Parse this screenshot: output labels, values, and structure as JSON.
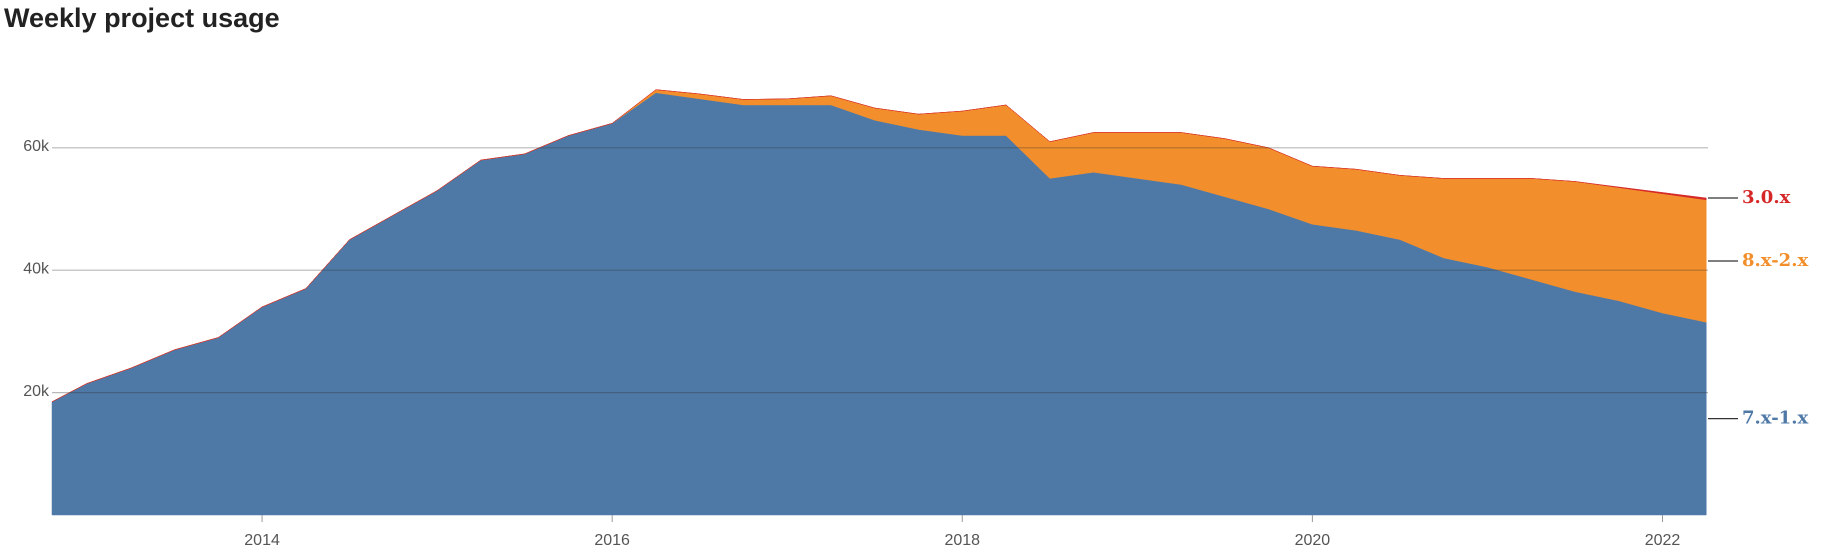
{
  "chart_data": {
    "type": "stacked_area",
    "title": "Weekly project usage",
    "x": [
      2012.8,
      2013.0,
      2013.25,
      2013.5,
      2013.75,
      2014.0,
      2014.25,
      2014.5,
      2014.75,
      2015.0,
      2015.25,
      2015.5,
      2015.75,
      2016.0,
      2016.25,
      2016.5,
      2016.75,
      2017.0,
      2017.25,
      2017.5,
      2017.75,
      2018.0,
      2018.25,
      2018.5,
      2018.75,
      2019.0,
      2019.25,
      2019.5,
      2019.75,
      2020.0,
      2020.25,
      2020.5,
      2020.75,
      2021.0,
      2021.25,
      2021.5,
      2021.75,
      2022.0,
      2022.25
    ],
    "series": [
      {
        "name": "7.x-1.x",
        "color": "#4e79a7",
        "values": [
          18500,
          21500,
          24000,
          27000,
          29000,
          34000,
          37000,
          45000,
          49000,
          53000,
          58000,
          59000,
          62000,
          64000,
          69000,
          68000,
          67000,
          67000,
          67000,
          64500,
          63000,
          62000,
          62000,
          55000,
          56000,
          55000,
          54000,
          52000,
          50000,
          47500,
          46500,
          45000,
          42000,
          40500,
          38500,
          36500,
          35000,
          33000,
          31500
        ]
      },
      {
        "name": "8.x-2.x",
        "color": "#f28e2b",
        "values": [
          0,
          0,
          0,
          0,
          0,
          0,
          0,
          0,
          0,
          0,
          0,
          0,
          0,
          0,
          500,
          800,
          900,
          1000,
          1500,
          2000,
          2500,
          4000,
          5000,
          6000,
          6500,
          7500,
          8500,
          9500,
          10000,
          9500,
          10000,
          10500,
          13000,
          14500,
          16500,
          18000,
          18500,
          19500,
          20000
        ]
      },
      {
        "name": "3.0.x",
        "color": "#d62728",
        "values": [
          0,
          0,
          0,
          0,
          0,
          0,
          0,
          0,
          0,
          0,
          0,
          0,
          0,
          0,
          0,
          0,
          0,
          0,
          0,
          0,
          0,
          0,
          0,
          0,
          0,
          0,
          0,
          0,
          0,
          0,
          0,
          0,
          0,
          0,
          0,
          0,
          100,
          200,
          300
        ]
      }
    ],
    "xlim": [
      2012.8,
      2022.26
    ],
    "xticks": [
      2014,
      2016,
      2018,
      2020,
      2022
    ],
    "ylim": [
      0,
      75000
    ],
    "yticks": [
      {
        "value": 20000,
        "label": "20k"
      },
      {
        "value": 40000,
        "label": "40k"
      },
      {
        "value": 60000,
        "label": "60k"
      }
    ],
    "grid": true
  }
}
